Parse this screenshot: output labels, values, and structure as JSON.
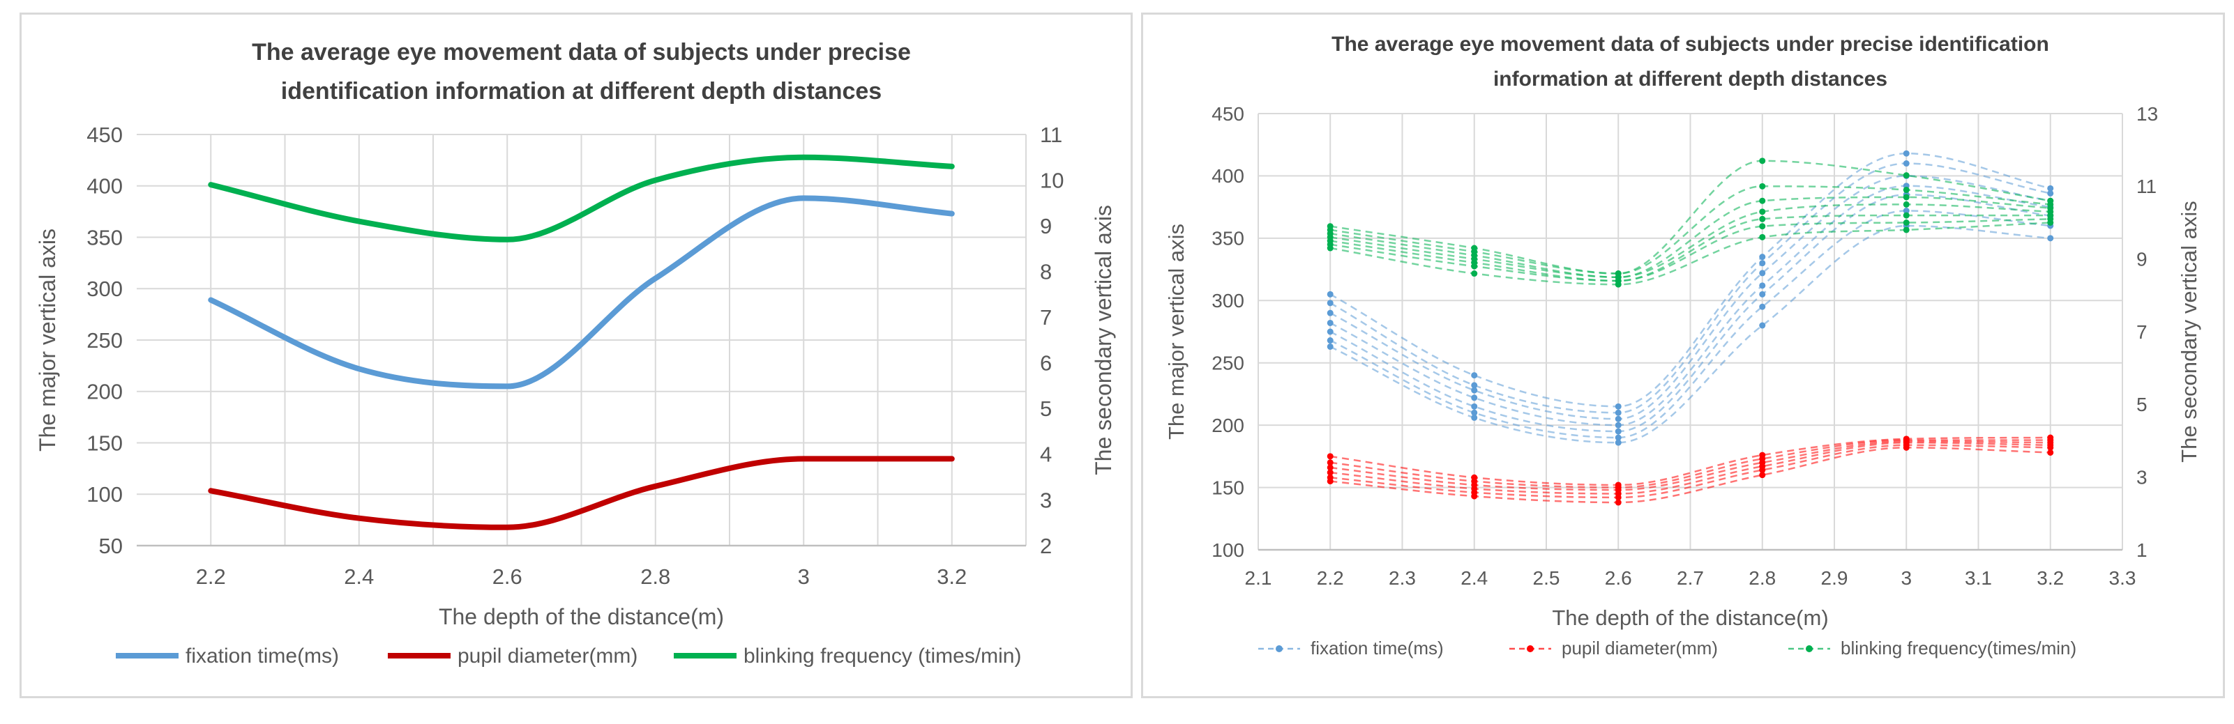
{
  "chart_data": [
    {
      "type": "line",
      "title": [
        "The average eye movement data of subjects under precise",
        "identification information at different depth distances"
      ],
      "xlabel": "The depth of the distance(m)",
      "ylabel": "The major vertical axis",
      "y2label": "The secondary vertical axis",
      "xlim": [
        2.1,
        3.3
      ],
      "xticks": [
        "2.2",
        "2.4",
        "2.6",
        "2.8",
        "3",
        "3.2"
      ],
      "xtick_values": [
        2.2,
        2.4,
        2.6,
        2.8,
        3.0,
        3.2
      ],
      "ylim": [
        50,
        450
      ],
      "yticks": [
        "50",
        "100",
        "150",
        "200",
        "250",
        "300",
        "350",
        "400",
        "450"
      ],
      "y2lim": [
        2,
        11
      ],
      "y2ticks": [
        "2",
        "3",
        "4",
        "5",
        "6",
        "7",
        "8",
        "9",
        "10",
        "11"
      ],
      "grid": true,
      "legend_position": "bottom",
      "series": [
        {
          "name": "fixation time(ms)",
          "axis": "primary",
          "color": "#5b9bd5",
          "x": [
            2.2,
            2.4,
            2.6,
            2.8,
            3.0,
            3.2
          ],
          "values": [
            289,
            222,
            205,
            310,
            388,
            373
          ]
        },
        {
          "name": "pupil diameter(mm)",
          "axis": "secondary",
          "color": "#c00000",
          "x": [
            2.2,
            2.4,
            2.6,
            2.8,
            3.0,
            3.2
          ],
          "values": [
            3.2,
            2.6,
            2.4,
            3.3,
            3.9,
            3.9
          ]
        },
        {
          "name": "blinking frequency (times/min)",
          "axis": "secondary",
          "color": "#00b050",
          "x": [
            2.2,
            2.4,
            2.6,
            2.8,
            3.0,
            3.2
          ],
          "values": [
            9.9,
            9.1,
            8.7,
            10.0,
            10.5,
            10.3
          ]
        }
      ]
    },
    {
      "type": "line",
      "title": [
        "The average eye movement data of subjects under precise identification",
        "information at different depth distances"
      ],
      "xlabel": "The depth of the distance(m)",
      "ylabel": "The major vertical axis",
      "y2label": "The secondary vertical axis",
      "xlim": [
        2.1,
        3.3
      ],
      "xticks": [
        "2.1",
        "2.2",
        "2.3",
        "2.4",
        "2.5",
        "2.6",
        "2.7",
        "2.8",
        "2.9",
        "3",
        "3.1",
        "3.2",
        "3.3"
      ],
      "xtick_values": [
        2.1,
        2.2,
        2.3,
        2.4,
        2.5,
        2.6,
        2.7,
        2.8,
        2.9,
        3.0,
        3.1,
        3.2,
        3.3
      ],
      "ylim": [
        100,
        450
      ],
      "yticks": [
        "100",
        "150",
        "200",
        "250",
        "300",
        "350",
        "400",
        "450"
      ],
      "y2lim": [
        1,
        13
      ],
      "y2ticks": [
        "1",
        "3",
        "5",
        "7",
        "9",
        "11",
        "13"
      ],
      "grid": true,
      "legend_position": "bottom",
      "x": [
        2.2,
        2.4,
        2.6,
        2.8,
        3.0,
        3.2
      ],
      "series_groups": [
        {
          "name": "fixation time(ms)",
          "axis": "primary",
          "color": "#5b9bd5",
          "runs": [
            [
              305,
              240,
              215,
              335,
              418,
              390
            ],
            [
              298,
              232,
              210,
              330,
              410,
              386
            ],
            [
              290,
              228,
              205,
              322,
              400,
              380
            ],
            [
              282,
              222,
              200,
              312,
              392,
              375
            ],
            [
              275,
              215,
              195,
              305,
              385,
              368
            ],
            [
              268,
              210,
              190,
              295,
              372,
              360
            ],
            [
              263,
              206,
              186,
              280,
              360,
              350
            ]
          ]
        },
        {
          "name": "pupil diameter(mm)",
          "axis": "primary",
          "color": "#ff0000",
          "runs": [
            [
              175,
              158,
              152,
              176,
              189,
              190
            ],
            [
              170,
              155,
              150,
              173,
              188,
              188
            ],
            [
              166,
              152,
              148,
              170,
              187,
              186
            ],
            [
              162,
              149,
              145,
              167,
              186,
              184
            ],
            [
              158,
              146,
              142,
              164,
              184,
              182
            ],
            [
              155,
              143,
              138,
              160,
              182,
              178
            ]
          ]
        },
        {
          "name": "blinking frequency(times/min)",
          "axis": "secondary",
          "color": "#00b050",
          "runs": [
            [
              9.9,
              9.3,
              8.6,
              11.7,
              11.3,
              10.6
            ],
            [
              9.8,
              9.2,
              8.6,
              11.0,
              10.9,
              10.5
            ],
            [
              9.7,
              9.1,
              8.5,
              10.6,
              10.7,
              10.4
            ],
            [
              9.6,
              9.0,
              8.5,
              10.3,
              10.5,
              10.3
            ],
            [
              9.5,
              8.9,
              8.4,
              10.1,
              10.2,
              10.2
            ],
            [
              9.4,
              8.8,
              8.4,
              9.9,
              10.0,
              10.1
            ],
            [
              9.3,
              8.6,
              8.3,
              9.6,
              9.8,
              10.0
            ]
          ]
        }
      ]
    }
  ]
}
